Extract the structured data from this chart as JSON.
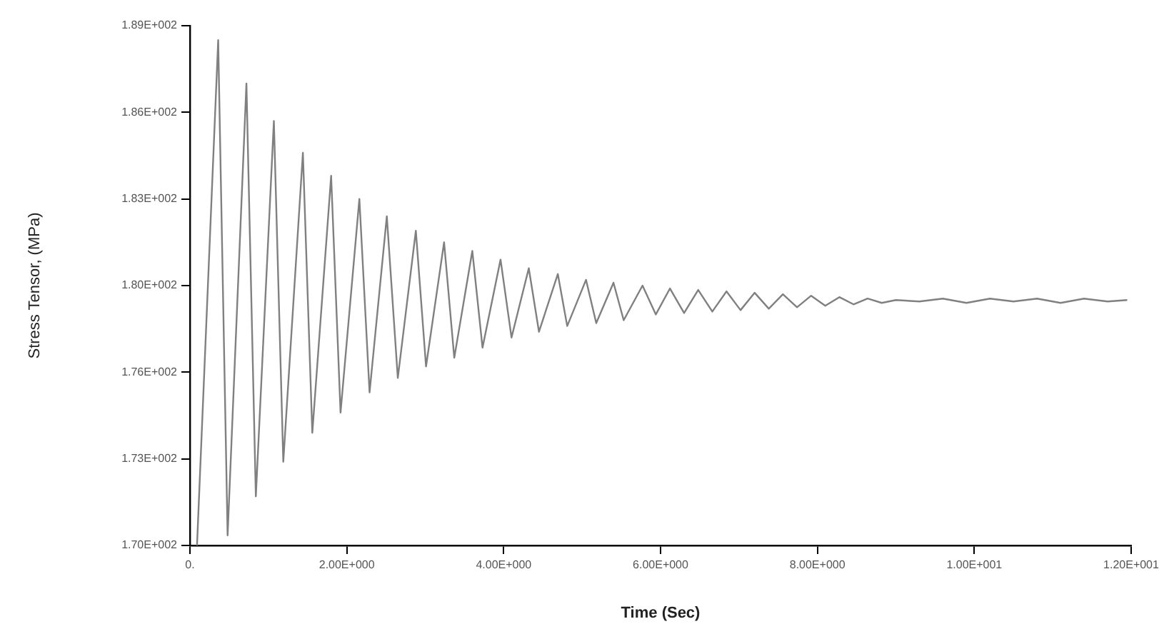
{
  "chart_data": {
    "type": "line",
    "xlabel": "Time (Sec)",
    "ylabel": "Stress Tensor, (MPa)",
    "marker": "none",
    "line_style": "solid",
    "xlim": [
      0,
      12
    ],
    "xticks": [
      {
        "value": 0,
        "label": "0."
      },
      {
        "value": 2,
        "label": "2.00E+000"
      },
      {
        "value": 4,
        "label": "4.00E+000"
      },
      {
        "value": 6,
        "label": "6.00E+000"
      },
      {
        "value": 8,
        "label": "8.00E+000"
      },
      {
        "value": 10,
        "label": "1.00E+001"
      },
      {
        "value": 12,
        "label": "1.20E+001"
      }
    ],
    "ylim": [
      170.5,
      188.5
    ],
    "yticks": [
      {
        "value": 170.5,
        "label": "1.70E+002"
      },
      {
        "value": 173.5,
        "label": "1.73E+002"
      },
      {
        "value": 176.5,
        "label": "1.76E+002"
      },
      {
        "value": 179.5,
        "label": "1.80E+002"
      },
      {
        "value": 182.5,
        "label": "1.83E+002"
      },
      {
        "value": 185.5,
        "label": "1.86E+002"
      },
      {
        "value": 188.5,
        "label": "1.89E+002"
      }
    ],
    "x": [
      0.09,
      0.36,
      0.48,
      0.72,
      0.84,
      1.07,
      1.19,
      1.44,
      1.56,
      1.8,
      1.92,
      2.16,
      2.29,
      2.51,
      2.65,
      2.88,
      3.01,
      3.24,
      3.37,
      3.6,
      3.73,
      3.96,
      4.1,
      4.32,
      4.45,
      4.69,
      4.81,
      5.05,
      5.18,
      5.4,
      5.53,
      5.77,
      5.94,
      6.12,
      6.3,
      6.48,
      6.66,
      6.84,
      7.02,
      7.2,
      7.38,
      7.56,
      7.74,
      7.92,
      8.1,
      8.28,
      8.46,
      8.64,
      8.82,
      9.0,
      9.3,
      9.6,
      9.9,
      10.2,
      10.5,
      10.8,
      11.1,
      11.4,
      11.7,
      11.95
    ],
    "series": [
      {
        "color": "#808080",
        "values": [
          170.5,
          188.0,
          170.85,
          186.5,
          172.2,
          185.2,
          173.4,
          184.1,
          174.4,
          183.3,
          175.1,
          182.5,
          175.8,
          181.9,
          176.3,
          181.4,
          176.7,
          181.0,
          177.0,
          180.7,
          177.35,
          180.4,
          177.7,
          180.1,
          177.9,
          179.9,
          178.1,
          179.7,
          178.2,
          179.6,
          178.3,
          179.5,
          178.5,
          179.4,
          178.55,
          179.35,
          178.6,
          179.3,
          178.65,
          179.25,
          178.7,
          179.2,
          178.75,
          179.15,
          178.8,
          179.1,
          178.85,
          179.05,
          178.9,
          179.0,
          178.95,
          179.05,
          178.9,
          179.05,
          178.95,
          179.05,
          178.9,
          179.05,
          178.95,
          179.0
        ]
      }
    ]
  }
}
